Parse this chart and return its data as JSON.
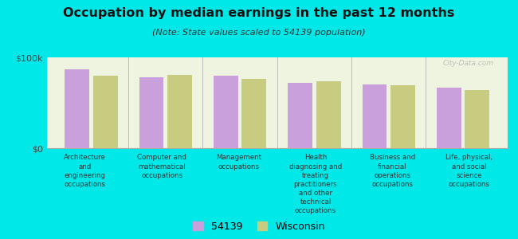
{
  "title": "Occupation by median earnings in the past 12 months",
  "subtitle": "(Note: State values scaled to 54139 population)",
  "background_color": "#00e8e8",
  "plot_bg_color": "#eef4e0",
  "categories": [
    "Architecture\nand\nengineering\noccupations",
    "Computer and\nmathematical\noccupations",
    "Management\noccupations",
    "Health\ndiagnosing and\ntreating\npractitioners\nand other\ntechnical\noccupations",
    "Business and\nfinancial\noperations\noccupations",
    "Life, physical,\nand social\nscience\noccupations"
  ],
  "values_54139": [
    87000,
    78000,
    80000,
    72000,
    70000,
    67000
  ],
  "values_wisconsin": [
    80000,
    81000,
    76000,
    74000,
    69000,
    64000
  ],
  "color_54139": "#c9a0dc",
  "color_wisconsin": "#c8cc80",
  "ylim": [
    0,
    100000
  ],
  "ytick_labels": [
    "$0",
    "$100k"
  ],
  "legend_54139": "54139",
  "legend_wisconsin": "Wisconsin",
  "watermark": "City-Data.com"
}
